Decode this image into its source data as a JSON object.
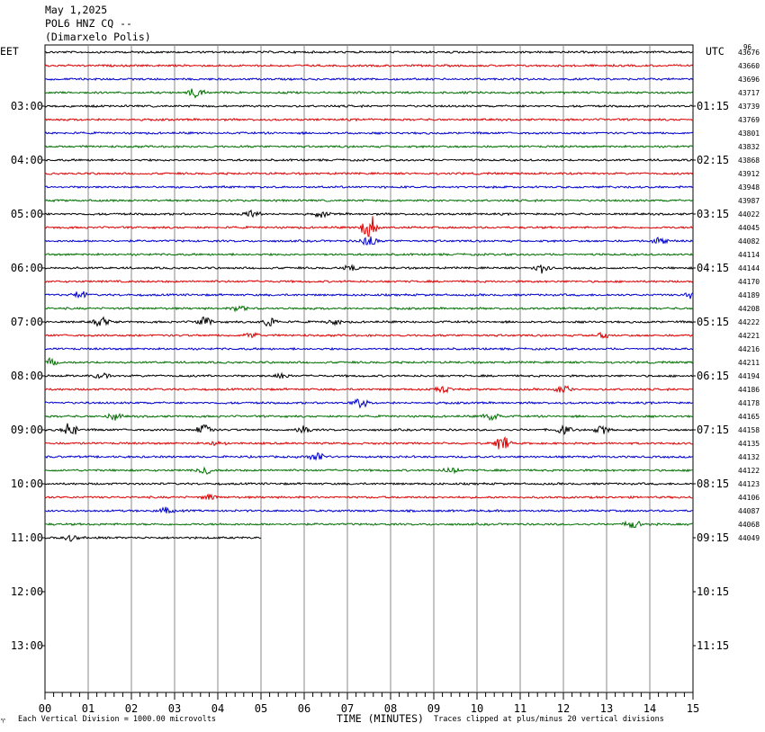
{
  "header": {
    "date": "May 1,2025",
    "station": "POL6 HNZ CQ --",
    "location": "(Dimarxelo Polis)"
  },
  "left_timezone": "EET",
  "right_timezone": "UTC",
  "corner_label": "96",
  "footer": {
    "scale": "Each Vertical Division = 1000.00 microvolts",
    "xlabel": "TIME (MINUTES)",
    "clip_note": "Traces clipped at plus/minus 20 vertical divisions",
    "logo_glyph": "♈"
  },
  "colors": {
    "trace_cycle": [
      "#000000",
      "#dd0000",
      "#0000cc",
      "#007000"
    ],
    "grid": "#888888"
  },
  "chart_data": {
    "type": "line",
    "title": "May 1,2025",
    "xlabel": "TIME (MINUTES)",
    "x_range": [
      0,
      15
    ],
    "x_ticks": [
      "00",
      "01",
      "02",
      "03",
      "04",
      "05",
      "06",
      "07",
      "08",
      "09",
      "10",
      "11",
      "12",
      "13",
      "14",
      "15"
    ],
    "left_hour_labels": [
      "03:00",
      "04:00",
      "05:00",
      "06:00",
      "07:00",
      "08:00",
      "09:00",
      "10:00",
      "11:00",
      "12:00",
      "13:00"
    ],
    "right_hour_labels": [
      "01:15",
      "02:15",
      "03:15",
      "04:15",
      "05:15",
      "06:15",
      "07:15",
      "08:15",
      "09:15",
      "10:15",
      "11:15"
    ],
    "trace_count_values": [
      43676,
      43660,
      43696,
      43717,
      43739,
      43769,
      43801,
      43832,
      43868,
      43912,
      43948,
      43987,
      44022,
      44045,
      44082,
      44114,
      44144,
      44170,
      44189,
      44208,
      44222,
      44221,
      44216,
      44211,
      44194,
      44186,
      44178,
      44165,
      44158,
      44135,
      44132,
      44122,
      44123,
      44106,
      44087,
      44068,
      44049
    ],
    "last_trace_end_minute": 5,
    "events": [
      {
        "trace": 3,
        "minute": 3.5,
        "amp": 4
      },
      {
        "trace": 12,
        "minute": 4.8,
        "amp": 3
      },
      {
        "trace": 12,
        "minute": 6.4,
        "amp": 2
      },
      {
        "trace": 13,
        "minute": 7.5,
        "amp": 10
      },
      {
        "trace": 14,
        "minute": 7.5,
        "amp": 4
      },
      {
        "trace": 14,
        "minute": 14.2,
        "amp": 3
      },
      {
        "trace": 16,
        "minute": 7.1,
        "amp": 2
      },
      {
        "trace": 16,
        "minute": 11.5,
        "amp": 3
      },
      {
        "trace": 18,
        "minute": 0.8,
        "amp": 3
      },
      {
        "trace": 18,
        "minute": 15.0,
        "amp": 3
      },
      {
        "trace": 19,
        "minute": 4.5,
        "amp": 2
      },
      {
        "trace": 20,
        "minute": 1.3,
        "amp": 3
      },
      {
        "trace": 20,
        "minute": 3.7,
        "amp": 3
      },
      {
        "trace": 20,
        "minute": 5.2,
        "amp": 3
      },
      {
        "trace": 20,
        "minute": 6.7,
        "amp": 2
      },
      {
        "trace": 21,
        "minute": 4.8,
        "amp": 2
      },
      {
        "trace": 21,
        "minute": 12.9,
        "amp": 2
      },
      {
        "trace": 23,
        "minute": 0.1,
        "amp": 3
      },
      {
        "trace": 24,
        "minute": 1.3,
        "amp": 2
      },
      {
        "trace": 24,
        "minute": 5.5,
        "amp": 2
      },
      {
        "trace": 25,
        "minute": 12.0,
        "amp": 3
      },
      {
        "trace": 25,
        "minute": 9.2,
        "amp": 2
      },
      {
        "trace": 26,
        "minute": 7.3,
        "amp": 3
      },
      {
        "trace": 27,
        "minute": 1.6,
        "amp": 3
      },
      {
        "trace": 27,
        "minute": 10.3,
        "amp": 3
      },
      {
        "trace": 28,
        "minute": 0.6,
        "amp": 5
      },
      {
        "trace": 28,
        "minute": 3.7,
        "amp": 4
      },
      {
        "trace": 28,
        "minute": 6.0,
        "amp": 3
      },
      {
        "trace": 28,
        "minute": 12.0,
        "amp": 3
      },
      {
        "trace": 28,
        "minute": 12.9,
        "amp": 3
      },
      {
        "trace": 29,
        "minute": 10.6,
        "amp": 5
      },
      {
        "trace": 29,
        "minute": 4.0,
        "amp": 2
      },
      {
        "trace": 30,
        "minute": 6.3,
        "amp": 3
      },
      {
        "trace": 31,
        "minute": 3.7,
        "amp": 3
      },
      {
        "trace": 31,
        "minute": 9.4,
        "amp": 2
      },
      {
        "trace": 33,
        "minute": 3.8,
        "amp": 2
      },
      {
        "trace": 34,
        "minute": 2.8,
        "amp": 2
      },
      {
        "trace": 35,
        "minute": 13.6,
        "amp": 3
      },
      {
        "trace": 36,
        "minute": 0.6,
        "amp": 2
      }
    ]
  }
}
